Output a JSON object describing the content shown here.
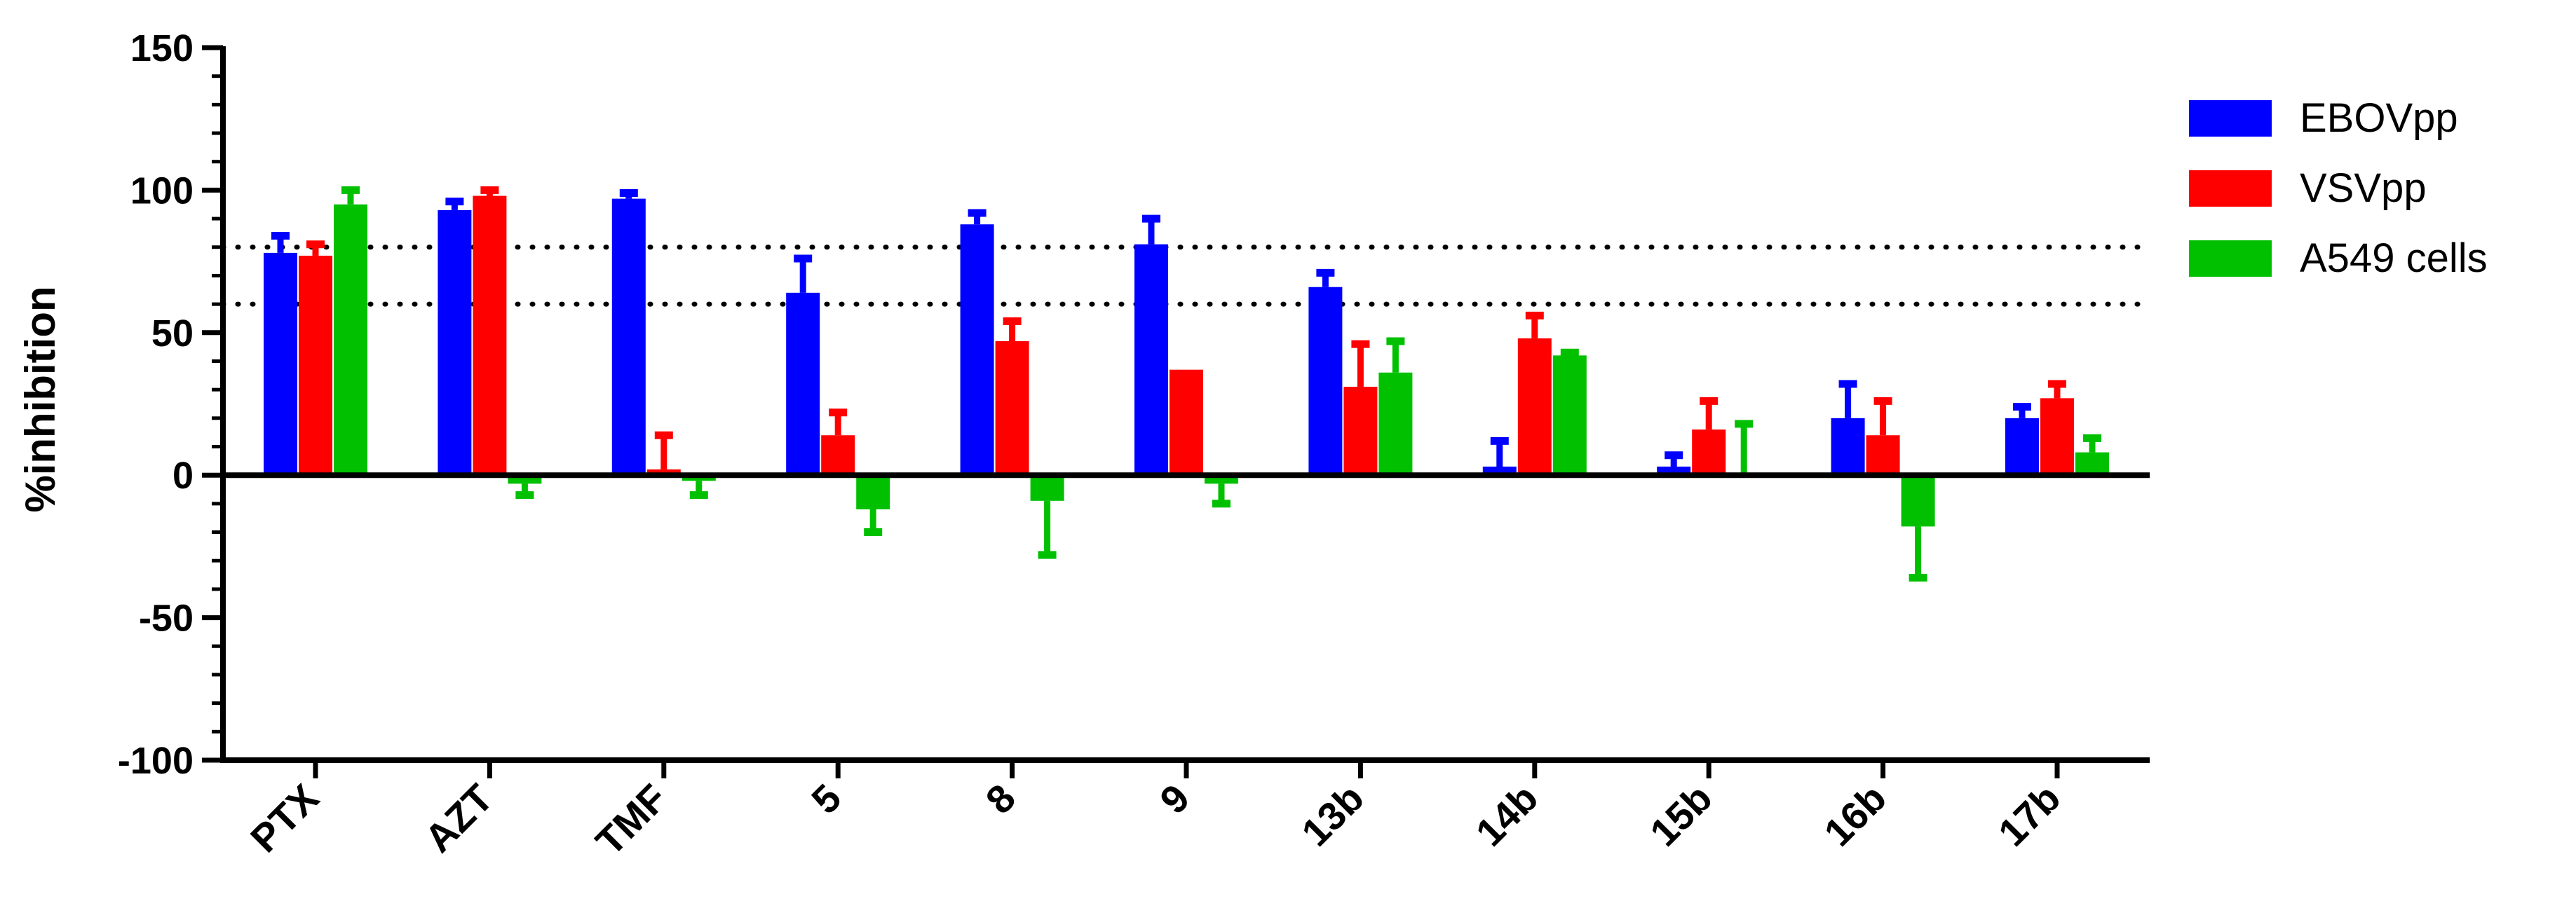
{
  "chart_data": {
    "type": "bar",
    "title": "",
    "xlabel": "",
    "ylabel": "%inhibition",
    "ylim": [
      -100,
      150
    ],
    "y_ticks": [
      150,
      100,
      50,
      0,
      -50,
      -100
    ],
    "reference_lines": [
      80,
      60
    ],
    "legend_position": "right",
    "categories": [
      "PTX",
      "AZT",
      "TMF",
      "5",
      "8",
      "9",
      "13b",
      "14b",
      "15b",
      "16b",
      "17b"
    ],
    "series": [
      {
        "name": "EBOVpp",
        "color": "#0000ff",
        "values": [
          78,
          93,
          97,
          64,
          88,
          81,
          66,
          3,
          3,
          20,
          20
        ],
        "error": [
          6,
          3,
          2,
          12,
          4,
          9,
          5,
          9,
          4,
          12,
          4
        ]
      },
      {
        "name": "VSVpp",
        "color": "#ff0000",
        "values": [
          77,
          98,
          2,
          14,
          47,
          37,
          31,
          48,
          16,
          14,
          27
        ],
        "error": [
          4,
          2,
          12,
          8,
          7,
          0,
          15,
          8,
          10,
          12,
          5
        ]
      },
      {
        "name": "A549 cells",
        "color": "#00c000",
        "values": [
          95,
          -3,
          -2,
          -12,
          -9,
          -3,
          36,
          42,
          0,
          -18,
          8
        ],
        "error": [
          5,
          4,
          5,
          8,
          19,
          7,
          11,
          1,
          18,
          18,
          5
        ]
      }
    ]
  }
}
